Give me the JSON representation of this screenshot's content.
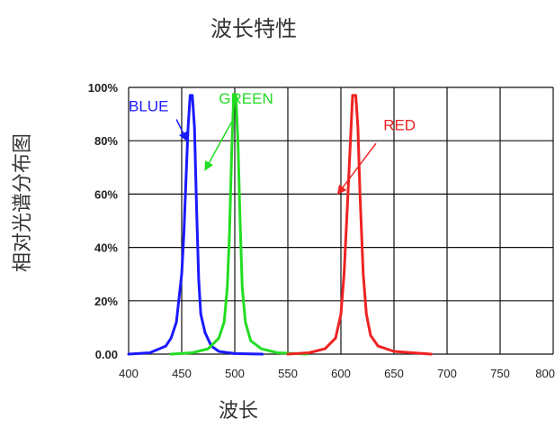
{
  "chart_data": {
    "type": "line",
    "title": "波长特性",
    "xlabel": "波长",
    "ylabel": "相对光谱分布图",
    "xlim": [
      400,
      800
    ],
    "ylim": [
      0,
      100
    ],
    "x_ticks": [
      "400",
      "450",
      "500",
      "550",
      "600",
      "650",
      "700",
      "750",
      "800"
    ],
    "y_ticks": [
      "0.00",
      "20%",
      "40%",
      "60%",
      "80%",
      "100%"
    ],
    "grid": true,
    "series": [
      {
        "name": "BLUE",
        "color": "#1a1aff",
        "points": [
          [
            400,
            0
          ],
          [
            420,
            0.5
          ],
          [
            435,
            3
          ],
          [
            440,
            6
          ],
          [
            445,
            12
          ],
          [
            450,
            30
          ],
          [
            452,
            45
          ],
          [
            454,
            65
          ],
          [
            456,
            85
          ],
          [
            458,
            97
          ],
          [
            460,
            97
          ],
          [
            462,
            85
          ],
          [
            464,
            55
          ],
          [
            466,
            28
          ],
          [
            468,
            15
          ],
          [
            472,
            8
          ],
          [
            478,
            3
          ],
          [
            485,
            1
          ],
          [
            500,
            0.2
          ],
          [
            526,
            0
          ]
        ]
      },
      {
        "name": "GREEN",
        "color": "#22dd22",
        "points": [
          [
            440,
            0
          ],
          [
            460,
            0.5
          ],
          [
            475,
            2
          ],
          [
            485,
            6
          ],
          [
            490,
            12
          ],
          [
            493,
            25
          ],
          [
            495,
            45
          ],
          [
            497,
            75
          ],
          [
            499,
            97
          ],
          [
            501,
            97
          ],
          [
            503,
            80
          ],
          [
            505,
            50
          ],
          [
            507,
            25
          ],
          [
            510,
            12
          ],
          [
            515,
            5
          ],
          [
            525,
            2
          ],
          [
            540,
            0.5
          ],
          [
            568,
            0
          ]
        ]
      },
      {
        "name": "RED",
        "color": "#ee2222",
        "points": [
          [
            550,
            0
          ],
          [
            570,
            0.5
          ],
          [
            585,
            2
          ],
          [
            595,
            6
          ],
          [
            600,
            15
          ],
          [
            603,
            30
          ],
          [
            606,
            55
          ],
          [
            609,
            80
          ],
          [
            611,
            97
          ],
          [
            614,
            97
          ],
          [
            616,
            85
          ],
          [
            618,
            60
          ],
          [
            621,
            30
          ],
          [
            624,
            15
          ],
          [
            628,
            7
          ],
          [
            635,
            3
          ],
          [
            650,
            1
          ],
          [
            685,
            0
          ]
        ]
      }
    ],
    "annotations": [
      {
        "label": "BLUE",
        "color": "#1a1aff",
        "text_at": [
          400,
          91
        ],
        "arrow_from": [
          445,
          88
        ],
        "arrow_to": [
          455,
          80
        ]
      },
      {
        "label": "GREEN",
        "color": "#22dd22",
        "text_at": [
          485,
          94
        ],
        "arrow_from": [
          497,
          87
        ],
        "arrow_to": [
          472,
          69
        ]
      },
      {
        "label": "RED",
        "color": "#ee2222",
        "text_at": [
          640,
          84
        ],
        "arrow_from": [
          633,
          79
        ],
        "arrow_to": [
          597,
          60
        ]
      }
    ]
  }
}
